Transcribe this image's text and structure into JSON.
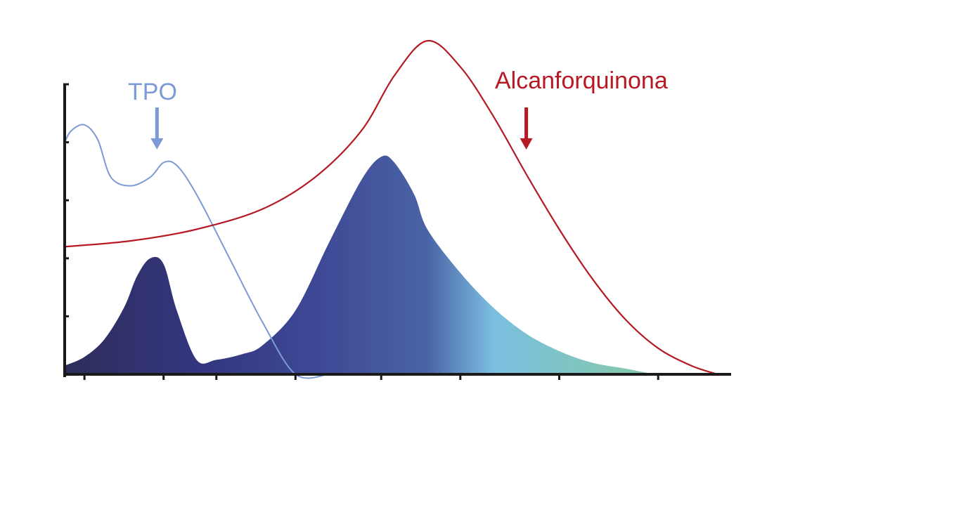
{
  "chart_data": {
    "type": "line",
    "title": "",
    "xlabel": "",
    "ylabel": "",
    "xlim": [
      0,
      100
    ],
    "ylim": [
      0,
      100
    ],
    "grid": false,
    "x_ticks": [
      3,
      15,
      23,
      35,
      48,
      60,
      75,
      90
    ],
    "y_ticks": [
      20,
      40,
      60,
      80,
      100
    ],
    "colors": {
      "tpo": "#7b9ad6",
      "alcanforquinona": "#b51a24",
      "axis": "#1a1a1a",
      "gradient_stops": [
        "#2e2d5a",
        "#33367f",
        "#3d4894",
        "#4a63a6",
        "#7abfe0",
        "#84c7b0"
      ]
    },
    "series": [
      {
        "name": "TPO",
        "label_color": "#7b9ad6",
        "x": [
          0,
          1,
          3,
          5,
          7,
          10,
          13,
          15,
          17,
          20,
          25,
          30,
          35,
          40
        ],
        "values": [
          80,
          84,
          86,
          81,
          68,
          65,
          68,
          73,
          72,
          62,
          40,
          18,
          0,
          0
        ]
      },
      {
        "name": "Alcanforquinona",
        "label_color": "#b51a24",
        "x": [
          0,
          10,
          20,
          30,
          38,
          45,
          50,
          55,
          60,
          65,
          70,
          75,
          80,
          85,
          90,
          95,
          99
        ],
        "values": [
          44,
          46,
          50,
          57,
          68,
          84,
          103,
          115,
          106,
          89,
          69,
          50,
          33,
          19,
          9,
          3,
          0
        ]
      }
    ],
    "emission_spectrum": {
      "x": [
        0,
        3,
        6,
        9,
        11,
        13,
        15,
        17,
        20,
        23,
        27,
        30,
        35,
        40,
        45,
        48,
        50,
        53,
        55,
        60,
        65,
        70,
        75,
        80,
        85,
        90,
        95,
        100
      ],
      "values": [
        3,
        6,
        12,
        23,
        34,
        40,
        38,
        22,
        5,
        5,
        7,
        10,
        22,
        45,
        67,
        75,
        73,
        62,
        50,
        35,
        23,
        14,
        8,
        4,
        2,
        0,
        0,
        0
      ]
    },
    "annotations": [
      {
        "text": "TPO",
        "series": "TPO",
        "arrow_x": 14,
        "arrow_from": 92,
        "arrow_to": 78
      },
      {
        "text": "Alcanforquinona",
        "series": "Alcanforquinona",
        "arrow_x": 70,
        "arrow_from": 92,
        "arrow_to": 78
      }
    ]
  }
}
